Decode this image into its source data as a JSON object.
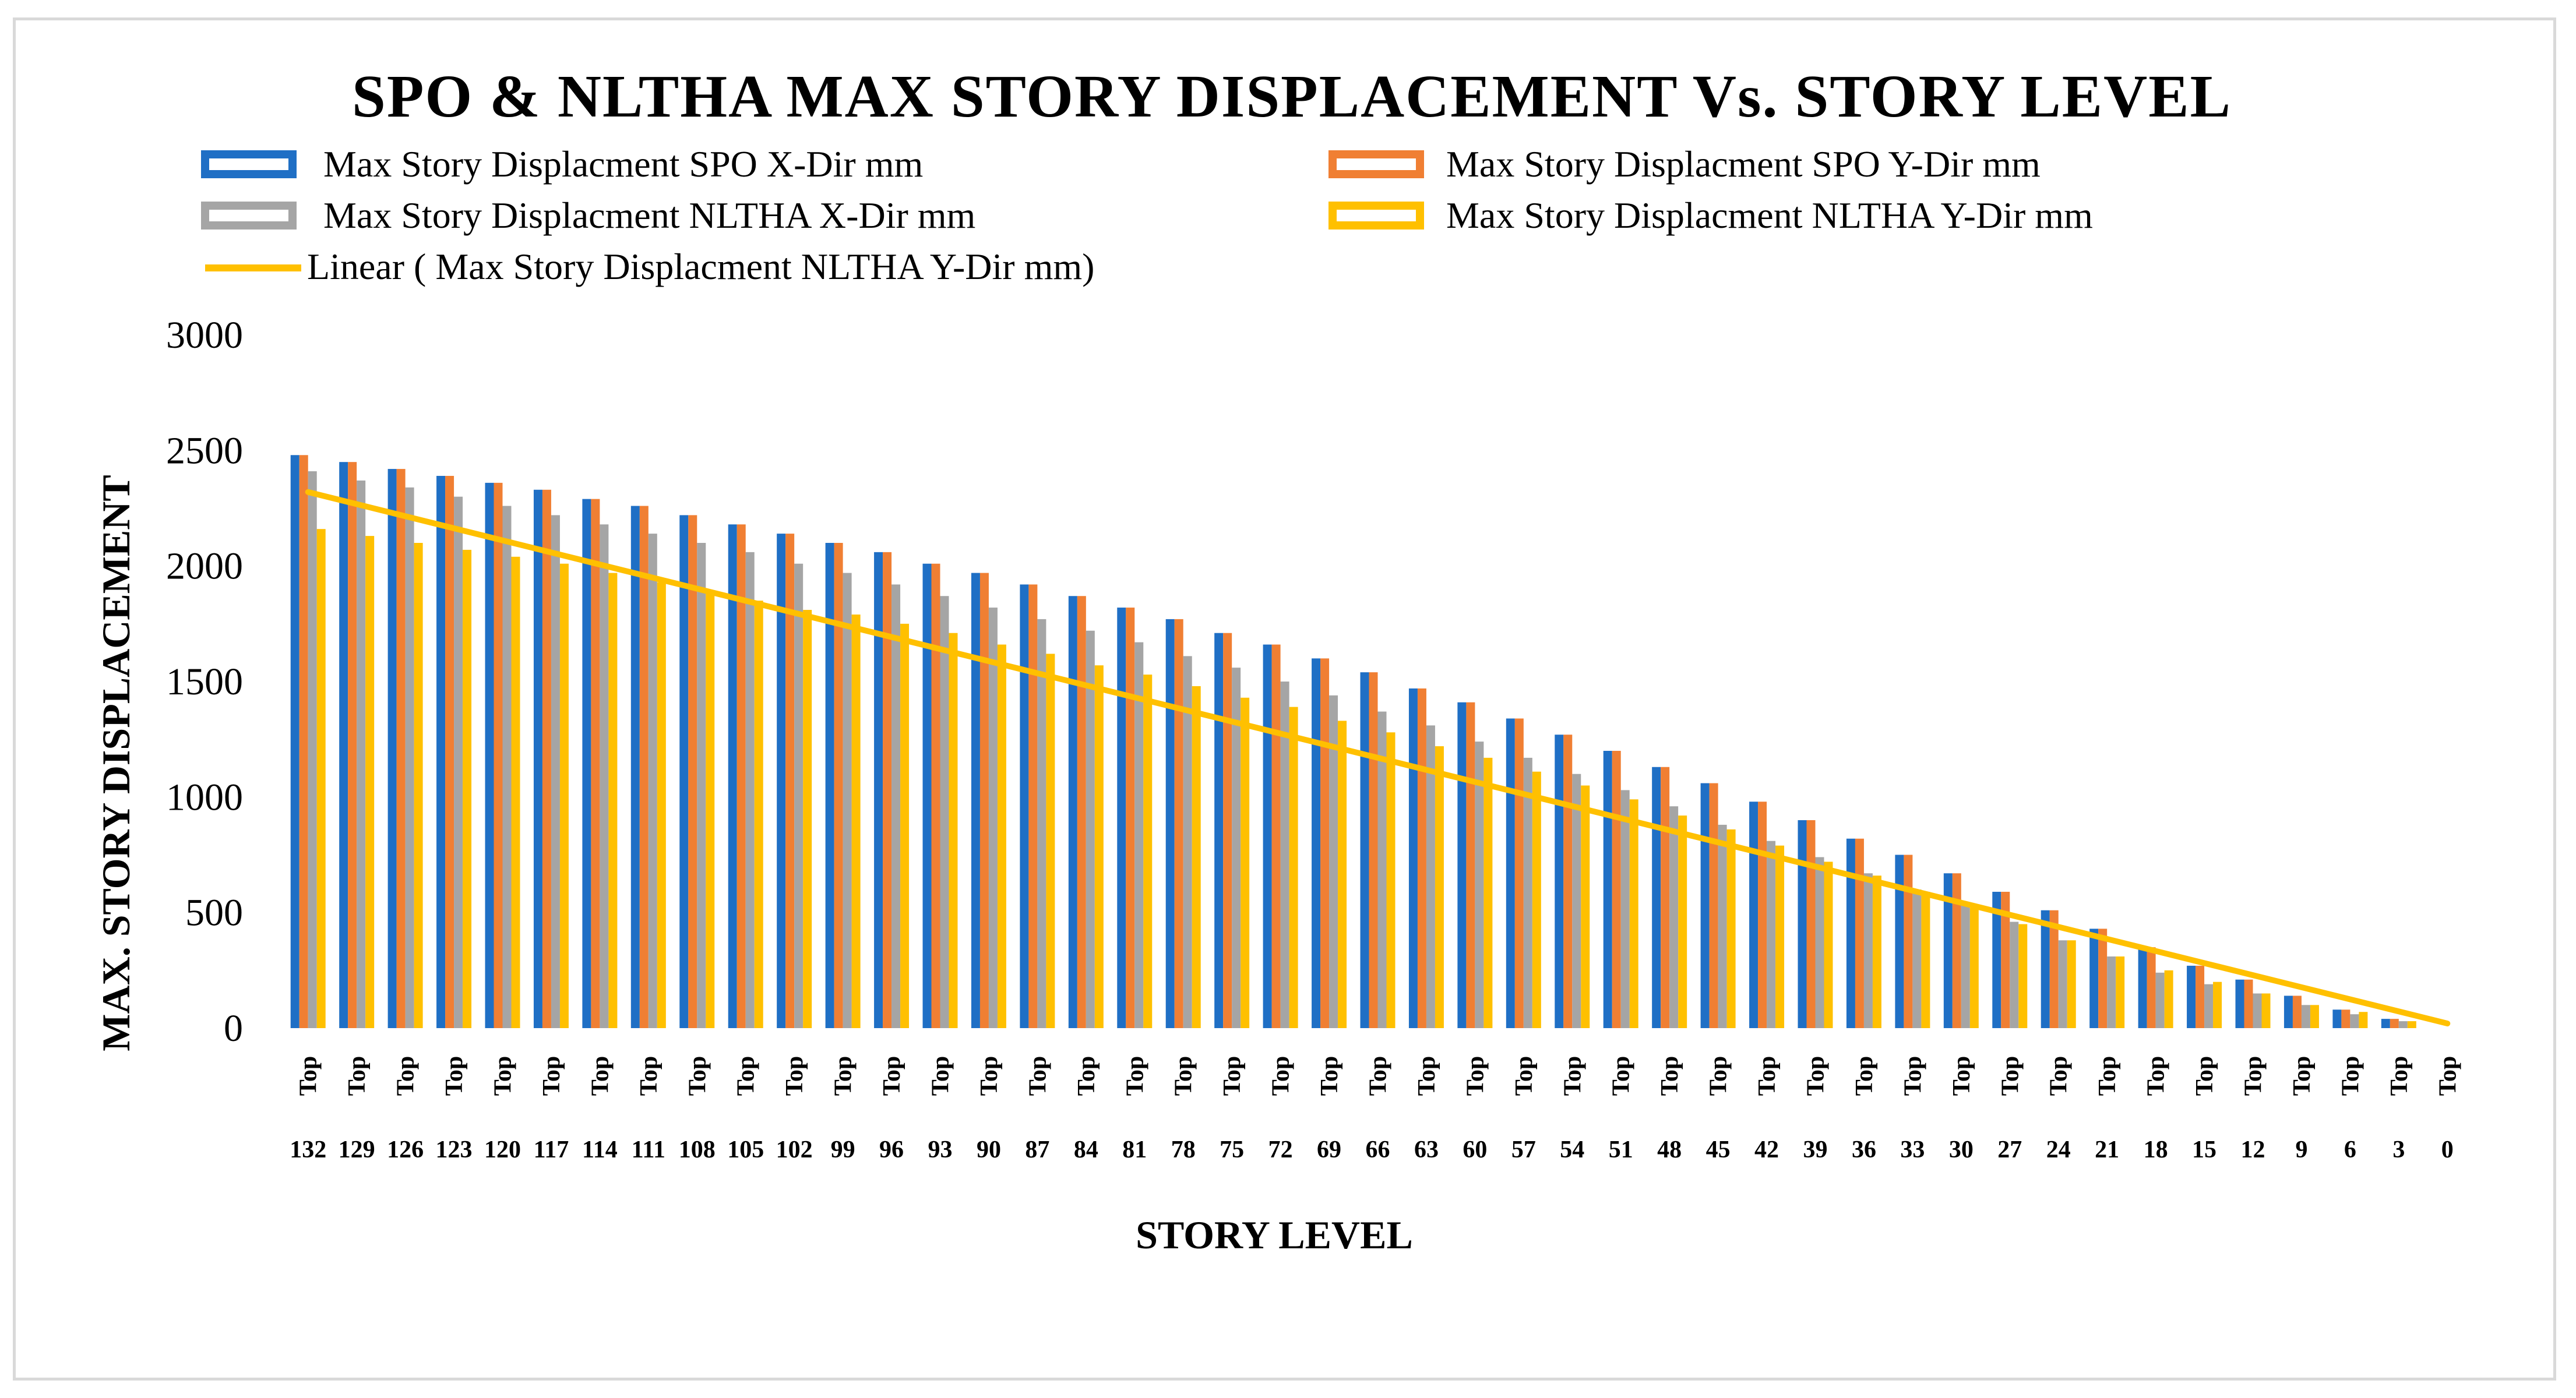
{
  "chart_data": {
    "type": "bar",
    "title": "SPO & NLTHA MAX STORY DISPLACEMENT Vs. STORY LEVEL",
    "xlabel": "STORY LEVEL",
    "ylabel": "MAX. STORY DISPLACEMENT",
    "ylim": [
      0,
      3000
    ],
    "yticks": [
      "0",
      "500",
      "1000",
      "1500",
      "2000",
      "2500",
      "3000"
    ],
    "tick_prefix": "Top",
    "categories": [
      "132",
      "129",
      "126",
      "123",
      "120",
      "117",
      "114",
      "111",
      "108",
      "105",
      "102",
      "99",
      "96",
      "93",
      "90",
      "87",
      "84",
      "81",
      "78",
      "75",
      "72",
      "69",
      "66",
      "63",
      "60",
      "57",
      "54",
      "51",
      "48",
      "45",
      "42",
      "39",
      "36",
      "33",
      "30",
      "27",
      "24",
      "21",
      "18",
      "15",
      "12",
      "9",
      "6",
      "3",
      "0"
    ],
    "series": [
      {
        "name": "Max Story Displacment SPO X-Dir mm",
        "color": "#1f6fc5",
        "values": [
          2480,
          2450,
          2420,
          2390,
          2360,
          2330,
          2290,
          2260,
          2220,
          2180,
          2140,
          2100,
          2060,
          2010,
          1970,
          1920,
          1870,
          1820,
          1770,
          1710,
          1660,
          1600,
          1540,
          1470,
          1410,
          1340,
          1270,
          1200,
          1130,
          1060,
          980,
          900,
          820,
          750,
          670,
          590,
          510,
          430,
          350,
          270,
          210,
          140,
          80,
          40,
          0
        ]
      },
      {
        "name": "Max Story Displacment SPO Y-Dir mm",
        "color": "#f07f33",
        "values": [
          2480,
          2450,
          2420,
          2390,
          2360,
          2330,
          2290,
          2260,
          2220,
          2180,
          2140,
          2100,
          2060,
          2010,
          1970,
          1920,
          1870,
          1820,
          1770,
          1710,
          1660,
          1600,
          1540,
          1470,
          1410,
          1340,
          1270,
          1200,
          1130,
          1060,
          980,
          900,
          820,
          750,
          670,
          590,
          510,
          430,
          350,
          270,
          210,
          140,
          80,
          40,
          0
        ]
      },
      {
        "name": "Max Story Displacment NLTHA X-Dir mm",
        "color": "#a5a5a5",
        "values": [
          2410,
          2370,
          2340,
          2300,
          2260,
          2220,
          2180,
          2140,
          2100,
          2060,
          2010,
          1970,
          1920,
          1870,
          1820,
          1770,
          1720,
          1670,
          1610,
          1560,
          1500,
          1440,
          1370,
          1310,
          1240,
          1170,
          1100,
          1030,
          960,
          880,
          810,
          740,
          670,
          600,
          530,
          460,
          380,
          310,
          240,
          190,
          150,
          100,
          60,
          30,
          0
        ]
      },
      {
        "name": "Max Story Displacment NLTHA Y-Dir mm",
        "color": "#ffc000",
        "values": [
          2160,
          2130,
          2100,
          2070,
          2040,
          2010,
          1970,
          1930,
          1890,
          1850,
          1810,
          1790,
          1750,
          1710,
          1660,
          1620,
          1570,
          1530,
          1480,
          1430,
          1390,
          1330,
          1280,
          1220,
          1170,
          1110,
          1050,
          990,
          920,
          860,
          790,
          720,
          660,
          590,
          520,
          450,
          380,
          310,
          250,
          200,
          150,
          100,
          70,
          30,
          0
        ]
      }
    ],
    "trendline": {
      "name": "Linear ( Max Story Displacment NLTHA Y-Dir mm)",
      "color": "#ffc000",
      "start": 2320,
      "end": 20
    }
  }
}
